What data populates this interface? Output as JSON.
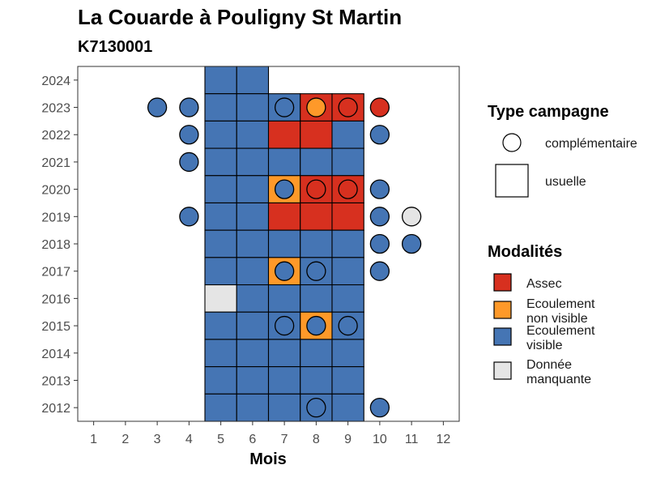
{
  "chart_data": {
    "type": "heatmap",
    "title": "La Couarde à Pouligny St Martin",
    "subtitle": "K7130001",
    "xlabel": "Mois",
    "ylabel": "",
    "x_ticks": [
      "1",
      "2",
      "3",
      "4",
      "5",
      "6",
      "7",
      "8",
      "9",
      "10",
      "11",
      "12"
    ],
    "y_ticks": [
      "2012",
      "2013",
      "2014",
      "2015",
      "2016",
      "2017",
      "2018",
      "2019",
      "2020",
      "2021",
      "2022",
      "2023",
      "2024"
    ],
    "xlim": [
      0.5,
      12.5
    ],
    "ylim": [
      2011.5,
      2024.5
    ],
    "grid": false,
    "legend_position": "right",
    "colors": {
      "Assec": "#d7301f",
      "Ecoulement non visible": "#fe9929",
      "Ecoulement visible": "#4575b4",
      "Donnée manquante": "#e5e5e5"
    },
    "legend_type": {
      "title": "Type campagne",
      "items": [
        {
          "key": "complementaire",
          "label": "complémentaire",
          "shape": "circle"
        },
        {
          "key": "usuelle",
          "label": "usuelle",
          "shape": "square"
        }
      ]
    },
    "legend_modalites": {
      "title": "Modalités",
      "items": [
        {
          "key": "Assec",
          "lines": [
            "Assec"
          ]
        },
        {
          "key": "Ecoulement non visible",
          "lines": [
            "Ecoulement",
            "non visible"
          ]
        },
        {
          "key": "Ecoulement visible",
          "lines": [
            "Ecoulement",
            "visible"
          ]
        },
        {
          "key": "Donnée manquante",
          "lines": [
            "Donnée",
            "manquante"
          ]
        }
      ]
    },
    "usuelle": [
      {
        "year": 2024,
        "months": [
          "Ecoulement visible",
          "Ecoulement visible",
          null,
          null,
          null
        ]
      },
      {
        "year": 2023,
        "months": [
          "Ecoulement visible",
          "Ecoulement visible",
          "Ecoulement visible",
          "Assec",
          "Assec"
        ]
      },
      {
        "year": 2022,
        "months": [
          "Ecoulement visible",
          "Ecoulement visible",
          "Assec",
          "Assec",
          "Ecoulement visible"
        ]
      },
      {
        "year": 2021,
        "months": [
          "Ecoulement visible",
          "Ecoulement visible",
          "Ecoulement visible",
          "Ecoulement visible",
          "Ecoulement visible"
        ]
      },
      {
        "year": 2020,
        "months": [
          "Ecoulement visible",
          "Ecoulement visible",
          "Ecoulement non visible",
          "Assec",
          "Assec"
        ]
      },
      {
        "year": 2019,
        "months": [
          "Ecoulement visible",
          "Ecoulement visible",
          "Assec",
          "Assec",
          "Assec"
        ]
      },
      {
        "year": 2018,
        "months": [
          "Ecoulement visible",
          "Ecoulement visible",
          "Ecoulement visible",
          "Ecoulement visible",
          "Ecoulement visible"
        ]
      },
      {
        "year": 2017,
        "months": [
          "Ecoulement visible",
          "Ecoulement visible",
          "Ecoulement non visible",
          "Ecoulement visible",
          "Ecoulement visible"
        ]
      },
      {
        "year": 2016,
        "months": [
          "Donnée manquante",
          "Ecoulement visible",
          "Ecoulement visible",
          "Ecoulement visible",
          "Ecoulement visible"
        ]
      },
      {
        "year": 2015,
        "months": [
          "Ecoulement visible",
          "Ecoulement visible",
          "Ecoulement visible",
          "Ecoulement non visible",
          "Ecoulement visible"
        ]
      },
      {
        "year": 2014,
        "months": [
          "Ecoulement visible",
          "Ecoulement visible",
          "Ecoulement visible",
          "Ecoulement visible",
          "Ecoulement visible"
        ]
      },
      {
        "year": 2013,
        "months": [
          "Ecoulement visible",
          "Ecoulement visible",
          "Ecoulement visible",
          "Ecoulement visible",
          "Ecoulement visible"
        ]
      },
      {
        "year": 2012,
        "months": [
          "Ecoulement visible",
          "Ecoulement visible",
          "Ecoulement visible",
          "Ecoulement visible",
          "Ecoulement visible"
        ]
      }
    ],
    "usuelle_first_month": 5,
    "complementaire": [
      {
        "year": 2023,
        "month": 3,
        "value": "Ecoulement visible"
      },
      {
        "year": 2023,
        "month": 4,
        "value": "Ecoulement visible"
      },
      {
        "year": 2023,
        "month": 7,
        "value": "Ecoulement visible"
      },
      {
        "year": 2023,
        "month": 8,
        "value": "Ecoulement non visible"
      },
      {
        "year": 2023,
        "month": 9,
        "value": "Assec"
      },
      {
        "year": 2023,
        "month": 10,
        "value": "Assec"
      },
      {
        "year": 2022,
        "month": 4,
        "value": "Ecoulement visible"
      },
      {
        "year": 2022,
        "month": 10,
        "value": "Ecoulement visible"
      },
      {
        "year": 2021,
        "month": 4,
        "value": "Ecoulement visible"
      },
      {
        "year": 2020,
        "month": 7,
        "value": "Ecoulement visible"
      },
      {
        "year": 2020,
        "month": 8,
        "value": "Assec"
      },
      {
        "year": 2020,
        "month": 9,
        "value": "Assec"
      },
      {
        "year": 2020,
        "month": 10,
        "value": "Ecoulement visible"
      },
      {
        "year": 2019,
        "month": 4,
        "value": "Ecoulement visible"
      },
      {
        "year": 2019,
        "month": 10,
        "value": "Ecoulement visible"
      },
      {
        "year": 2019,
        "month": 11,
        "value": "Donnée manquante"
      },
      {
        "year": 2018,
        "month": 10,
        "value": "Ecoulement visible"
      },
      {
        "year": 2018,
        "month": 11,
        "value": "Ecoulement visible"
      },
      {
        "year": 2017,
        "month": 7,
        "value": "Ecoulement visible"
      },
      {
        "year": 2017,
        "month": 8,
        "value": "Ecoulement visible"
      },
      {
        "year": 2017,
        "month": 10,
        "value": "Ecoulement visible"
      },
      {
        "year": 2015,
        "month": 7,
        "value": "Ecoulement visible"
      },
      {
        "year": 2015,
        "month": 8,
        "value": "Ecoulement visible"
      },
      {
        "year": 2015,
        "month": 9,
        "value": "Ecoulement visible"
      },
      {
        "year": 2012,
        "month": 8,
        "value": "Ecoulement visible"
      },
      {
        "year": 2012,
        "month": 10,
        "value": "Ecoulement visible"
      }
    ]
  }
}
